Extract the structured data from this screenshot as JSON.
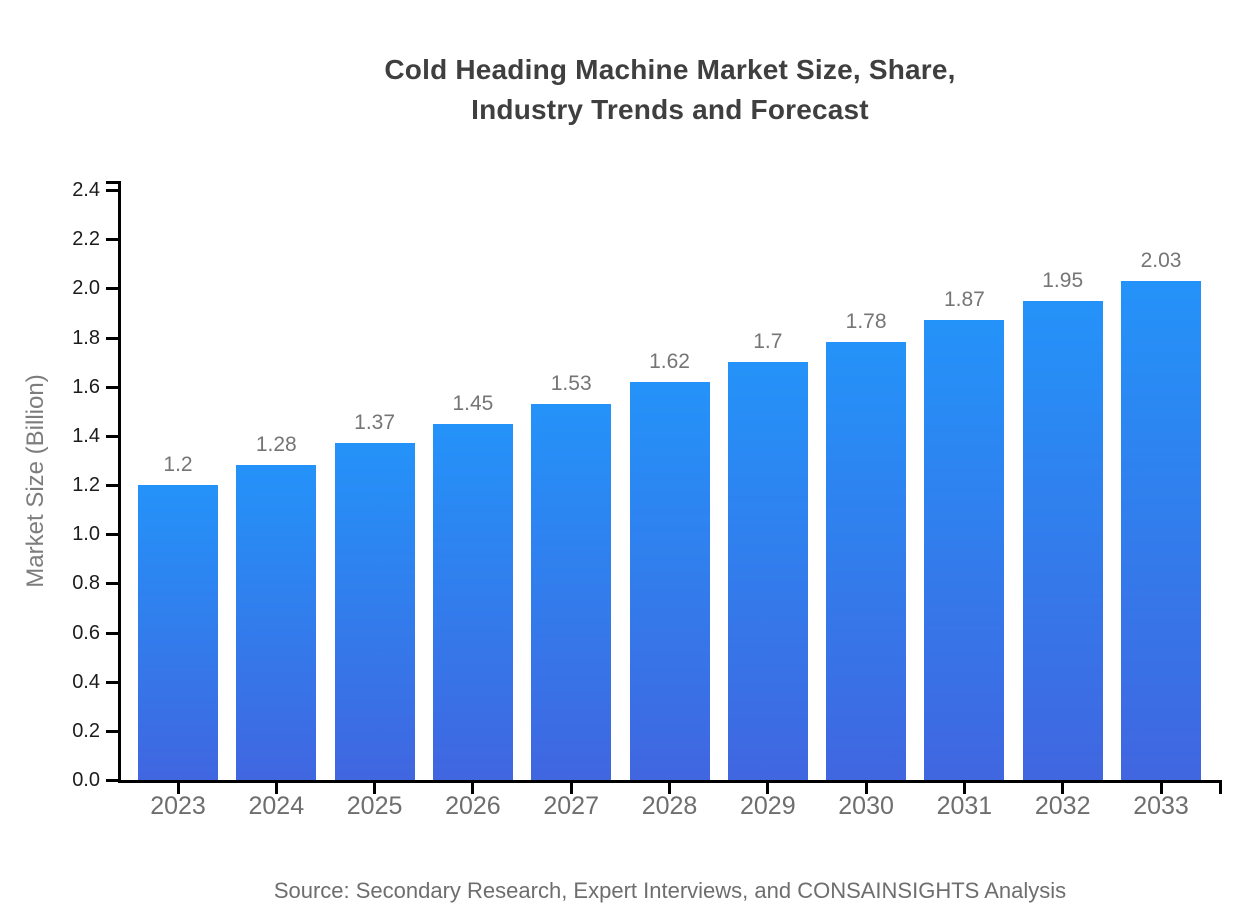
{
  "title": {
    "lines": [
      "Cold Heading Machine Market Size, Share,",
      "Industry Trends and Forecast"
    ]
  },
  "chart_data": {
    "type": "bar",
    "title": "Cold Heading Machine Market Size, Share, Industry Trends and Forecast",
    "categories": [
      "2023",
      "2024",
      "2025",
      "2026",
      "2027",
      "2028",
      "2029",
      "2030",
      "2031",
      "2032",
      "2033"
    ],
    "values": [
      1.2,
      1.28,
      1.37,
      1.45,
      1.53,
      1.62,
      1.7,
      1.78,
      1.87,
      1.95,
      2.03
    ],
    "value_labels": [
      "1.2",
      "1.28",
      "1.37",
      "1.45",
      "1.53",
      "1.62",
      "1.7",
      "1.78",
      "1.87",
      "1.95",
      "2.03"
    ],
    "xlabel": "",
    "ylabel": "Market Size (Billion)",
    "ylim": [
      0,
      2.4
    ],
    "ytick_step": 0.2,
    "grid": false,
    "legend": false,
    "colors": {
      "bar_gradient_top": "#2493f9",
      "bar_gradient_bottom": "#4066e0",
      "axis": "#000000",
      "y_tick_label": "#1c1c1c",
      "category_label": "#6e6e6e",
      "value_label": "#757575",
      "axis_title": "#7d7d7d",
      "title": "#3f3f3f",
      "source": "#6e6e6e"
    }
  },
  "source": {
    "text": "Source: Secondary Research, Expert Interviews, and CONSAINSIGHTS Analysis"
  }
}
